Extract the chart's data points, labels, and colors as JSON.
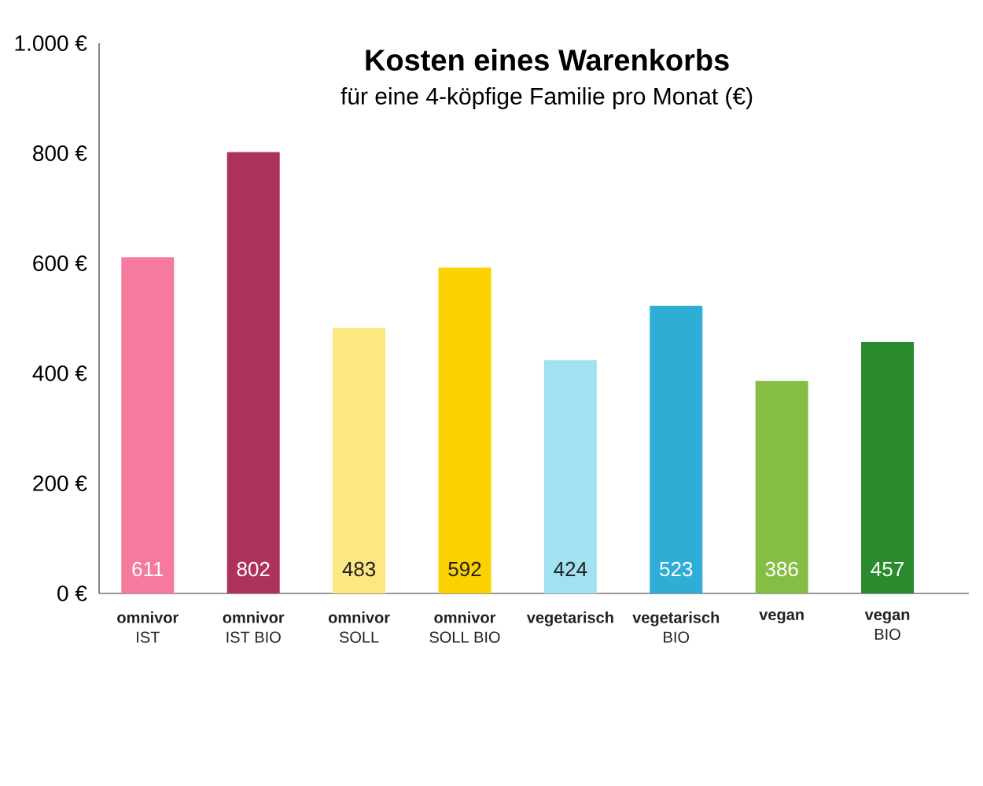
{
  "chart_data": {
    "type": "bar",
    "title": "Kosten eines Warenkorbs",
    "subtitle": "für eine 4-köpfige Familie pro Monat (€)",
    "categories": [
      "**omnivor**\nIST",
      "**omnivor**\nIST BIO",
      "**omnivor**\nSOLL",
      "**omnivor**\nSOLL BIO",
      "**vegetarisch**",
      "**vegetarisch**\nBIO",
      "**vegan**",
      "**vegan**\nBIO"
    ],
    "values": [
      611,
      802,
      483,
      592,
      424,
      523,
      386,
      457
    ],
    "colors": [
      "#f67a9e",
      "#ad325a",
      "#fde781",
      "#fbd100",
      "#a1e1f1",
      "#2eadd5",
      "#85be44",
      "#2a8b2e"
    ],
    "ylim": [
      0,
      1000
    ],
    "yticks": [
      {
        "value": 0,
        "label": "0 €"
      },
      {
        "value": 200,
        "label": "200 €"
      },
      {
        "value": 400,
        "label": "400 €"
      },
      {
        "value": 600,
        "label": "600 €"
      },
      {
        "value": 800,
        "label": "800 €"
      },
      {
        "value": 1000,
        "label": "1.000 €"
      }
    ],
    "data_labels": true
  }
}
